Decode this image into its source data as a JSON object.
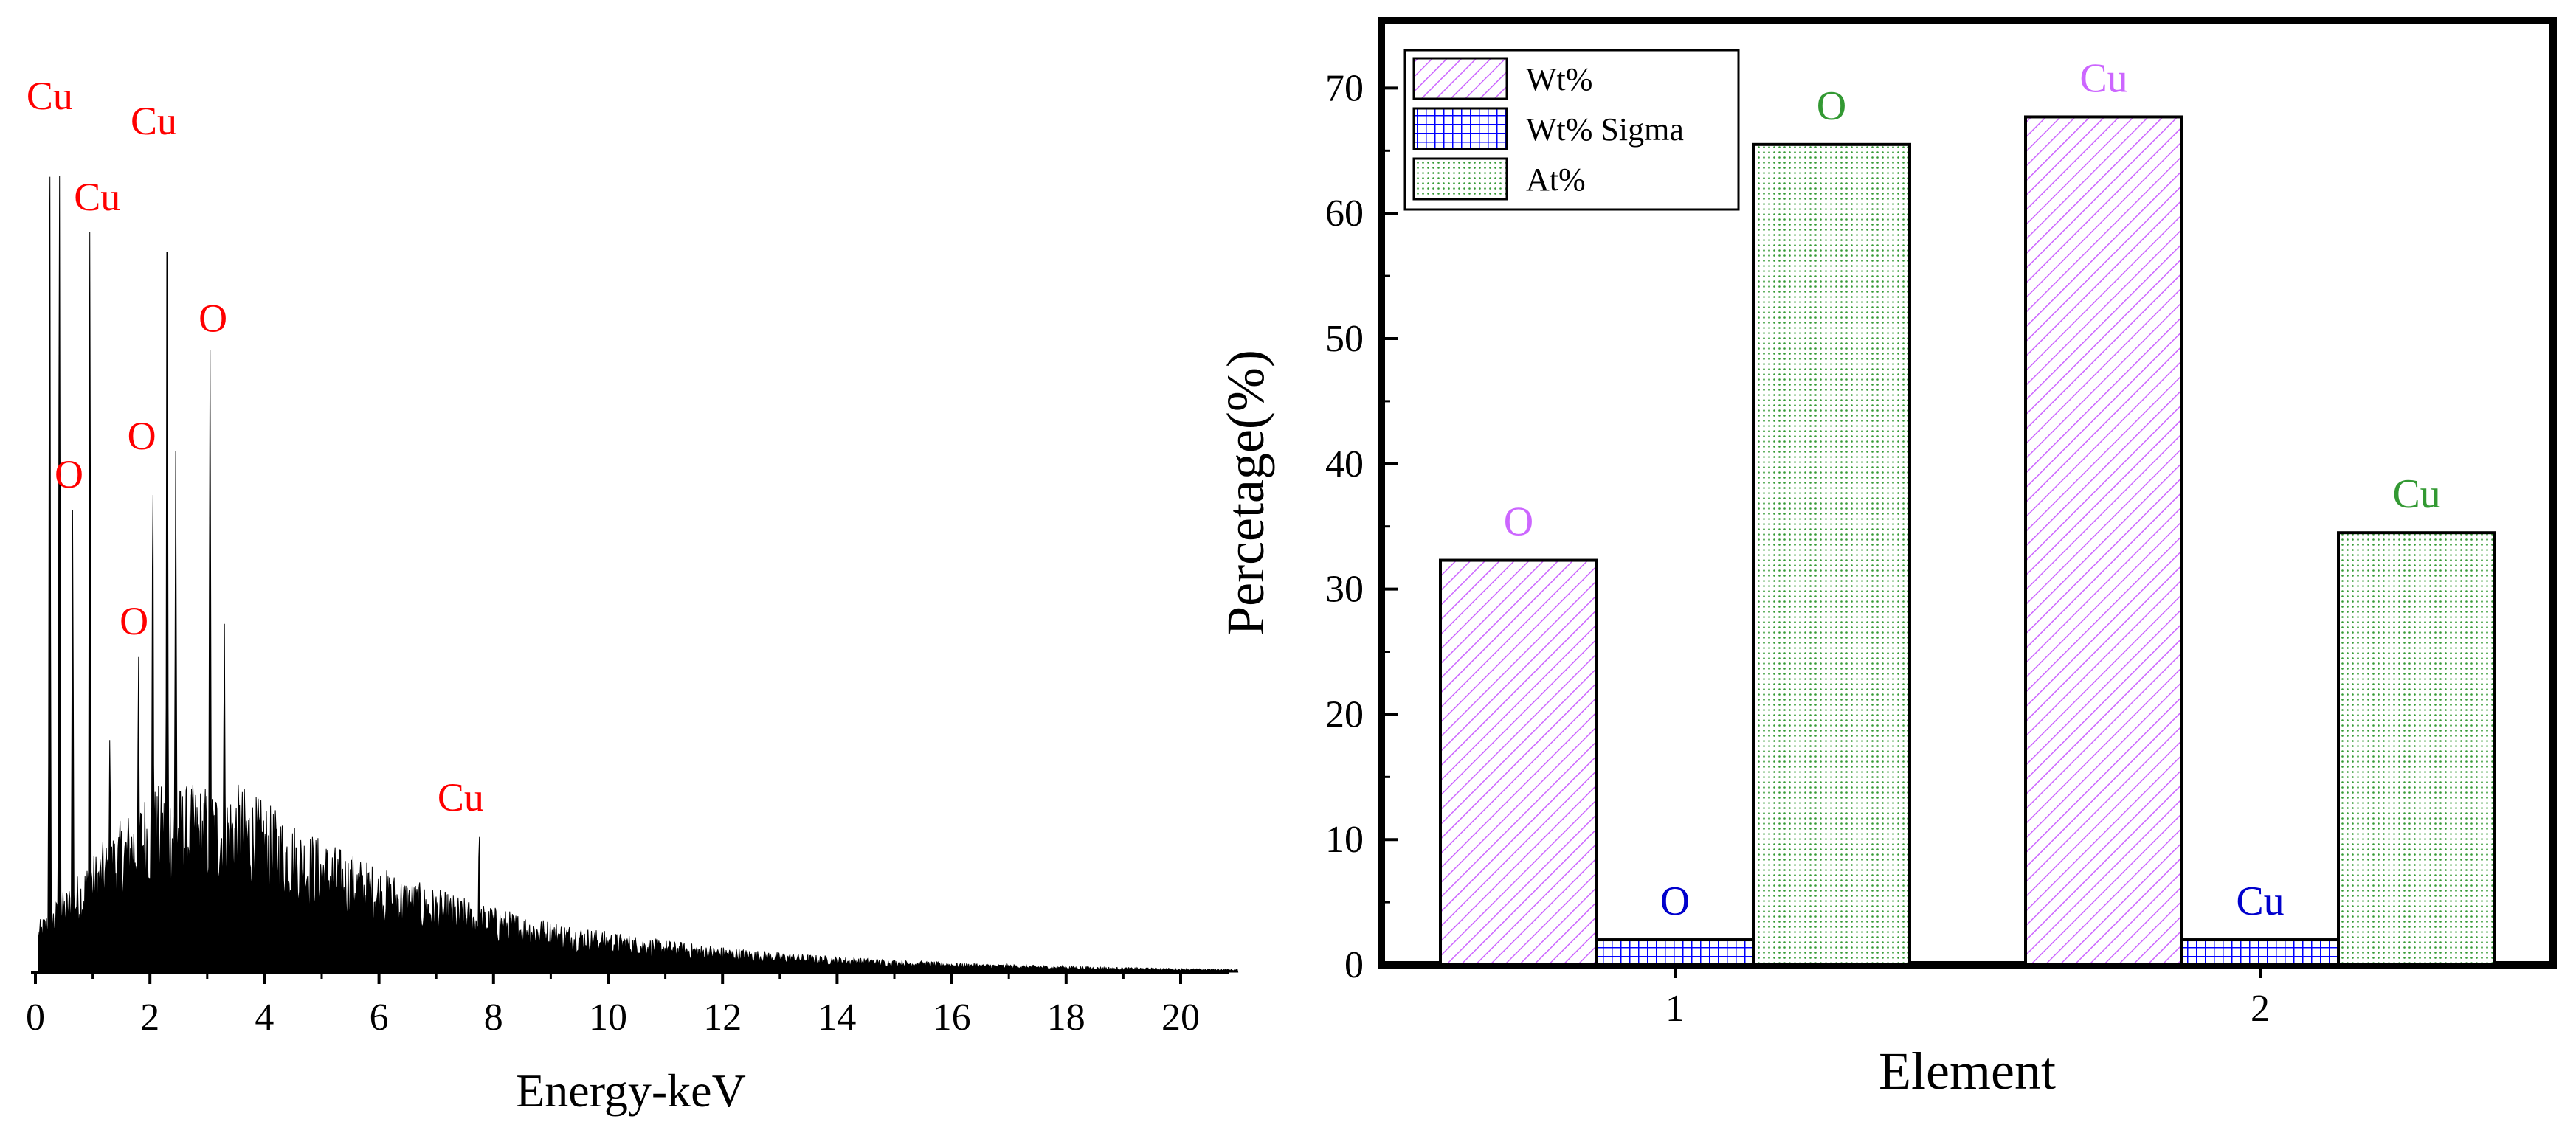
{
  "chart_data": [
    {
      "type": "line",
      "title": "",
      "xlabel": "Energy-keV",
      "ylabel": "",
      "xlim": [
        0,
        21
      ],
      "x_ticks": [
        0,
        2,
        4,
        6,
        8,
        10,
        12,
        14,
        16,
        18,
        20
      ],
      "tick_labels": [
        "0",
        "2",
        "4",
        "6",
        "8",
        "10",
        "12",
        "14",
        "16",
        "18",
        "20"
      ],
      "y_axis_visible": false,
      "peaks": [
        {
          "x": 0.25,
          "y": 1.0
        },
        {
          "x": 0.42,
          "y": 0.96
        },
        {
          "x": 0.65,
          "y": 0.55
        },
        {
          "x": 0.95,
          "y": 0.88
        },
        {
          "x": 1.3,
          "y": 0.28
        },
        {
          "x": 1.8,
          "y": 0.38
        },
        {
          "x": 2.05,
          "y": 0.6
        },
        {
          "x": 2.3,
          "y": 0.97
        },
        {
          "x": 2.45,
          "y": 0.62
        },
        {
          "x": 3.05,
          "y": 0.74
        },
        {
          "x": 3.3,
          "y": 0.42
        },
        {
          "x": 7.75,
          "y": 0.17
        },
        {
          "x": 8.6,
          "y": 0.05
        }
      ],
      "annotations": [
        {
          "text": "Cu",
          "x": 0.25,
          "y": 1.0
        },
        {
          "text": "Cu",
          "x": 0.95,
          "y": 0.88
        },
        {
          "text": "Cu",
          "x": 2.3,
          "y": 0.97
        },
        {
          "text": "O",
          "x": 0.65,
          "y": 0.55
        },
        {
          "text": "O",
          "x": 1.8,
          "y": 0.38
        },
        {
          "text": "O",
          "x": 2.05,
          "y": 0.6
        },
        {
          "text": "O",
          "x": 3.05,
          "y": 0.74
        },
        {
          "text": "Cu",
          "x": 7.75,
          "y": 0.17
        }
      ],
      "colors": {
        "trace": "#000000",
        "annotation": "#ff0000"
      }
    },
    {
      "type": "bar",
      "title": "",
      "xlabel": "Element",
      "ylabel": "Percetage(%)",
      "ylim": [
        0,
        75
      ],
      "y_ticks": [
        0,
        10,
        20,
        30,
        40,
        50,
        60,
        70
      ],
      "y_tick_labels": [
        "0",
        "10",
        "20",
        "30",
        "40",
        "50",
        "60",
        "70"
      ],
      "categories": [
        "1",
        "2"
      ],
      "series": [
        {
          "name": "Wt%",
          "values": [
            32.3,
            67.7
          ],
          "labels": [
            "O",
            "Cu"
          ],
          "color": "#cc66ff",
          "pattern": "diagonal-hatch"
        },
        {
          "name": "Wt% Sigma",
          "values": [
            2.0,
            2.0
          ],
          "labels": [
            "O",
            "Cu"
          ],
          "color": "#0000ff",
          "pattern": "grid"
        },
        {
          "name": "At%",
          "values": [
            65.5,
            34.5
          ],
          "labels": [
            "O",
            "Cu"
          ],
          "color": "#339933",
          "pattern": "dots"
        }
      ],
      "legend": "top-left",
      "colors": {
        "label_wt": "#cc66ff",
        "label_sigma": "#0000cc",
        "label_at": "#339933"
      }
    }
  ]
}
